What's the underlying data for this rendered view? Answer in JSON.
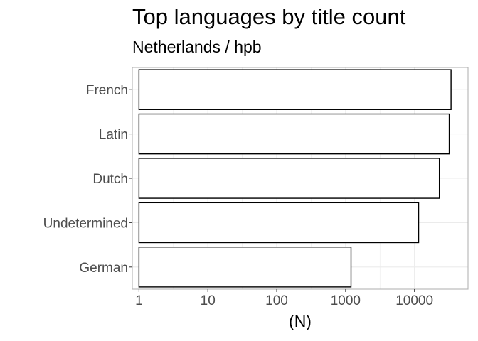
{
  "chart_data": {
    "type": "bar",
    "orientation": "horizontal",
    "title": "Top languages by title count",
    "subtitle": "Netherlands / hpb",
    "xlabel": "(N)",
    "ylabel": "",
    "x_scale": "log10",
    "xlim": [
      0.8,
      60000
    ],
    "x_ticks": [
      1,
      10,
      100,
      1000,
      10000
    ],
    "x_tick_labels": [
      "1",
      "10",
      "100",
      "1000",
      "10000"
    ],
    "categories": [
      "French",
      "Latin",
      "Dutch",
      "Undetermined",
      "German"
    ],
    "values": [
      34000,
      32000,
      23000,
      11500,
      1200
    ],
    "grid": true,
    "legend": "none",
    "bar_fill": "#ffffff",
    "bar_stroke": "#000000",
    "panel_border": "#b3b3b3",
    "grid_color": "#ebebeb"
  }
}
